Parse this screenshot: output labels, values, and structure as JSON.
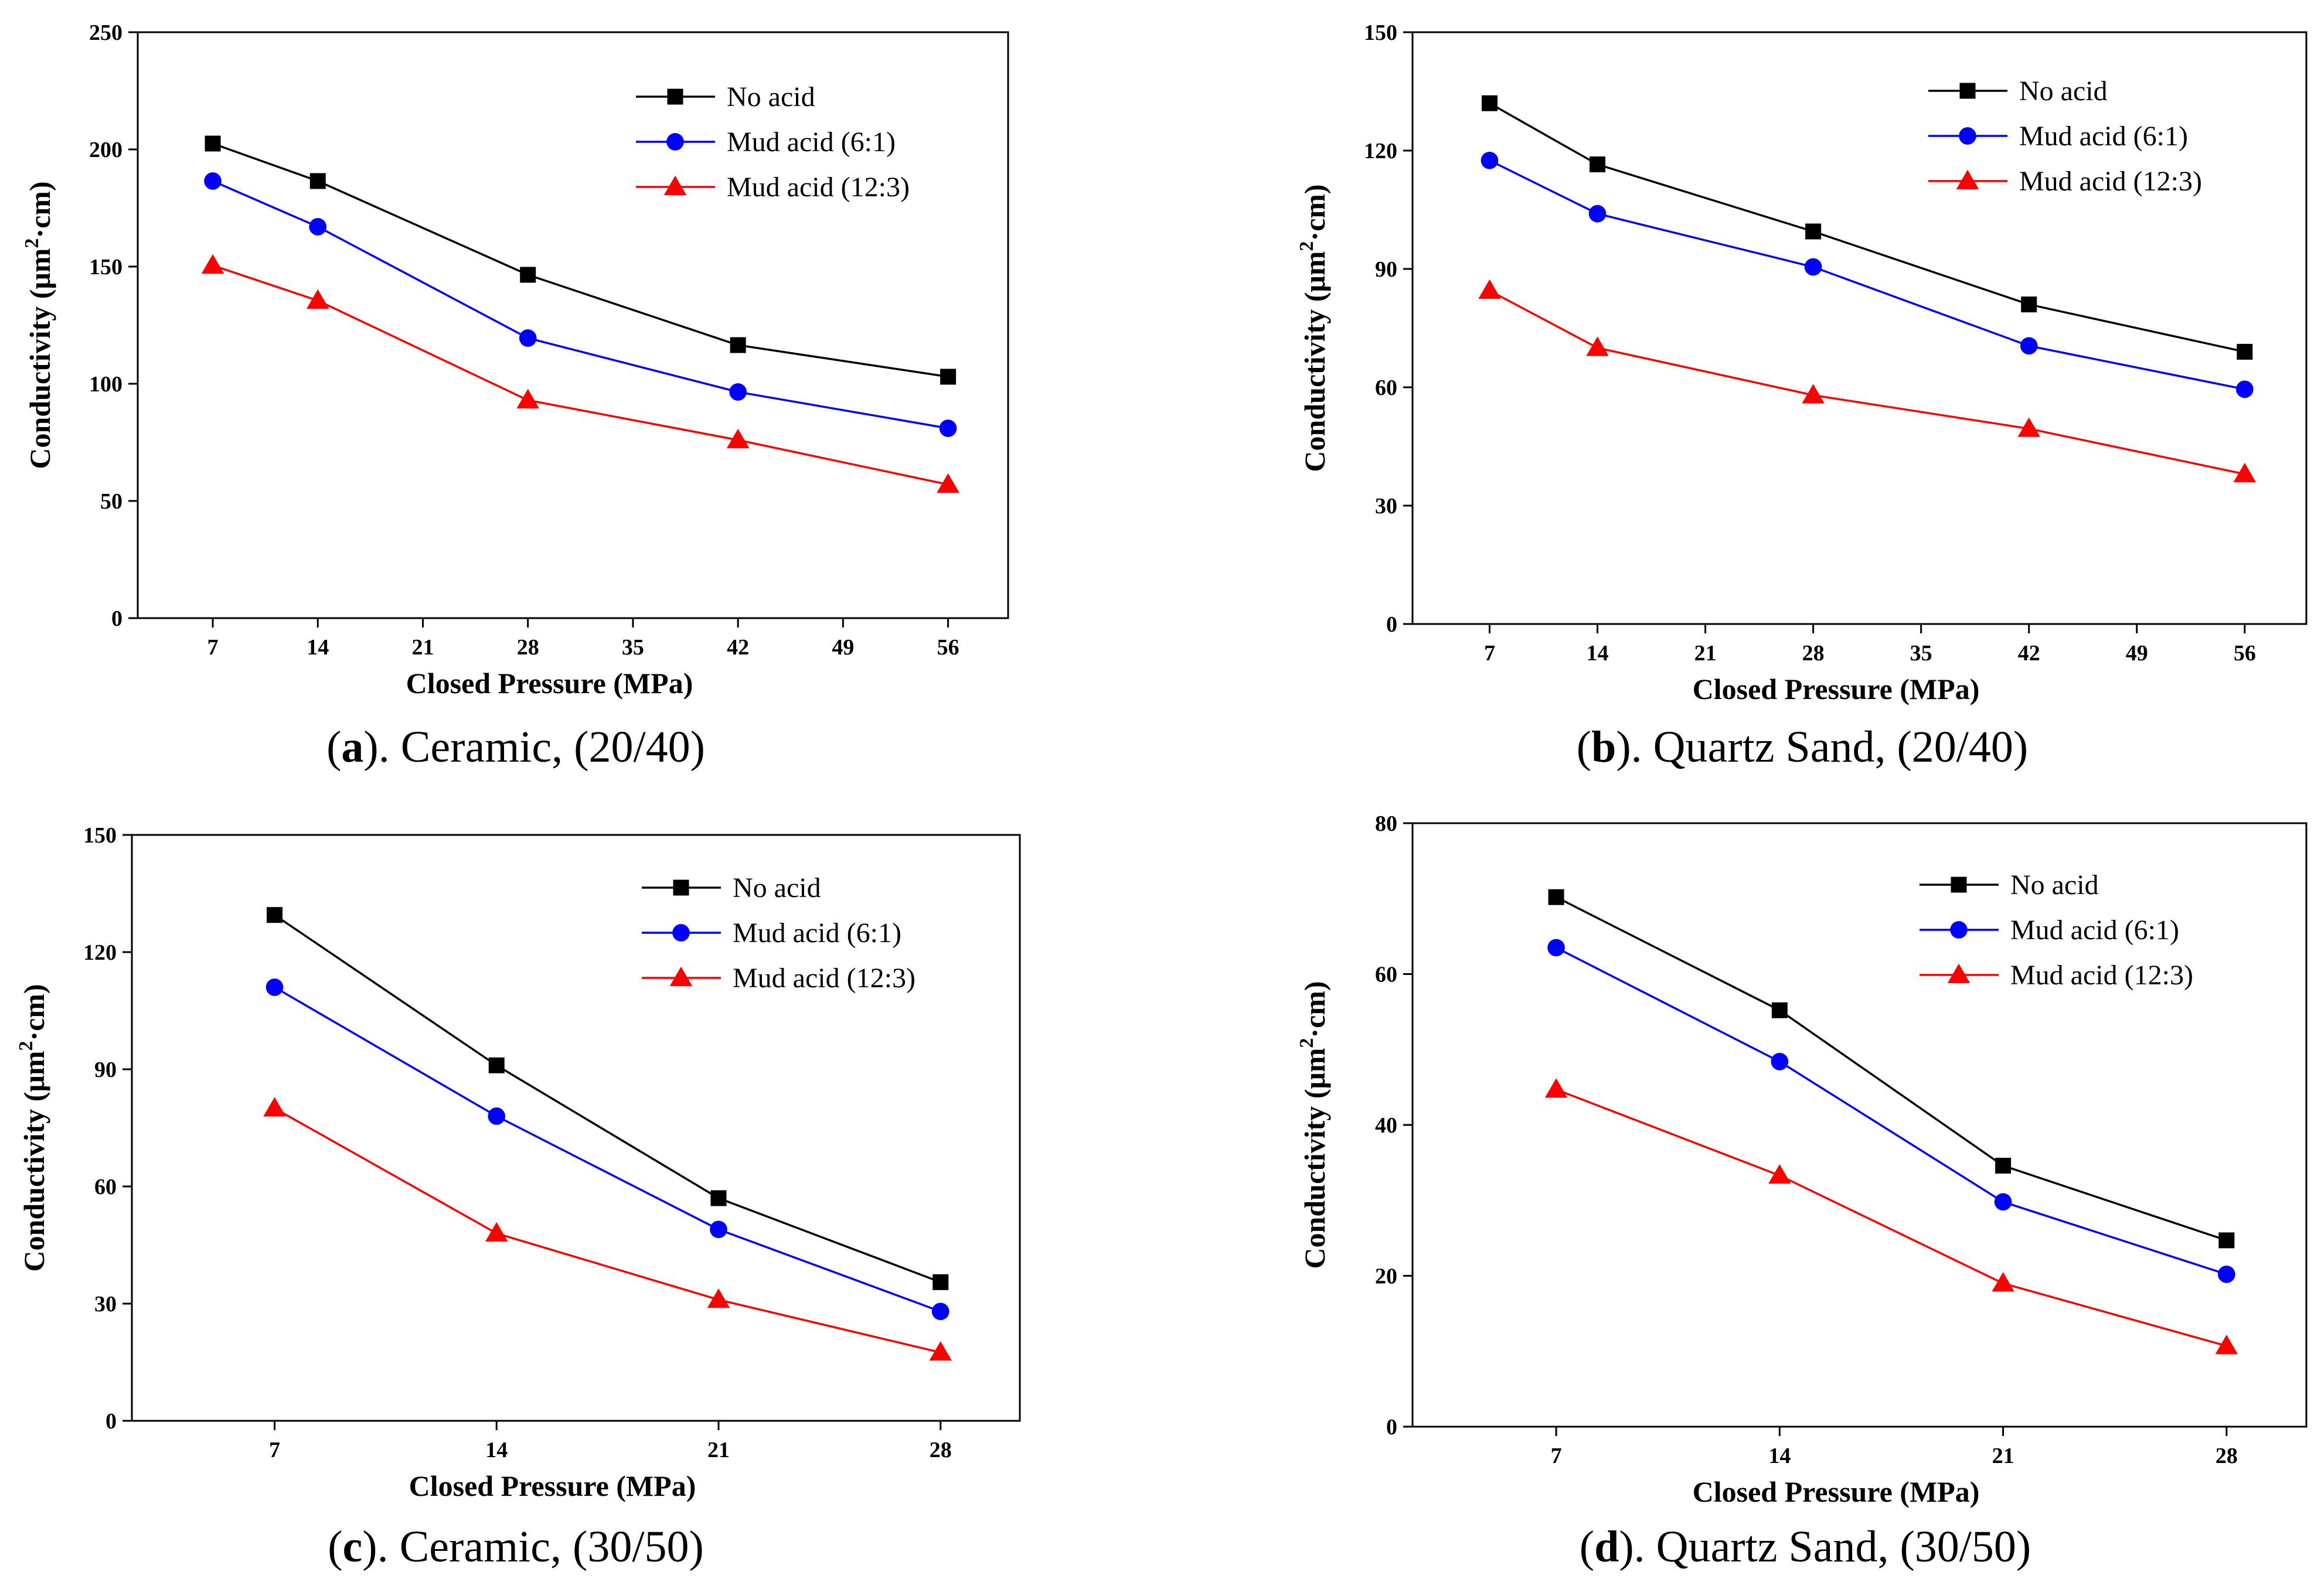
{
  "chart_data": [
    {
      "type": "line",
      "caption_letter": "a",
      "caption_rest": "). Ceramic, (20/40)",
      "xlabel": "Closed Pressure (MPa)",
      "ylabel_main": "Conductivity (μm",
      "ylabel_sup": "2",
      "ylabel_tail": "·cm)",
      "xlim": [
        2,
        60
      ],
      "ylim": [
        0,
        250
      ],
      "xticks": [
        7,
        14,
        21,
        28,
        35,
        42,
        49,
        56
      ],
      "yticks": [
        0,
        50,
        100,
        150,
        200,
        250
      ],
      "x": [
        7,
        14,
        28,
        42,
        56
      ],
      "legend_position": "top-right",
      "series": [
        {
          "name": "No acid",
          "color": "#000000",
          "marker": "square",
          "values": [
            202.5,
            186.5,
            146.5,
            116.5,
            103
          ]
        },
        {
          "name": "Mud acid (6:1)",
          "color": "#0000ff",
          "marker": "circle",
          "values": [
            186.5,
            167,
            119.5,
            96.5,
            81
          ]
        },
        {
          "name": "Mud acid (12:3)",
          "color": "#ff0000",
          "marker": "triangle",
          "values": [
            150.5,
            135.5,
            93,
            76,
            57
          ]
        }
      ]
    },
    {
      "type": "line",
      "caption_letter": "b",
      "caption_rest": "). Quartz Sand, (20/40)",
      "xlabel": "Closed Pressure (MPa)",
      "ylabel_main": "Conductivity (μm",
      "ylabel_sup": "2",
      "ylabel_tail": "·cm)",
      "xlim": [
        2,
        60
      ],
      "ylim": [
        0,
        150
      ],
      "xticks": [
        7,
        14,
        21,
        28,
        35,
        42,
        49,
        56
      ],
      "yticks": [
        0,
        30,
        60,
        90,
        120,
        150
      ],
      "x": [
        7,
        14,
        28,
        42,
        56
      ],
      "legend_position": "top-right",
      "series": [
        {
          "name": "No acid",
          "color": "#000000",
          "marker": "square",
          "values": [
            132,
            116.5,
            99.5,
            81,
            69
          ]
        },
        {
          "name": "Mud acid (6:1)",
          "color": "#0000ff",
          "marker": "circle",
          "values": [
            117.5,
            104,
            90.5,
            70.5,
            59.5
          ]
        },
        {
          "name": "Mud acid (12:3)",
          "color": "#ff0000",
          "marker": "triangle",
          "values": [
            84.5,
            70,
            58,
            49.5,
            38
          ]
        }
      ]
    },
    {
      "type": "line",
      "caption_letter": "c",
      "caption_rest": "). Ceramic, (30/50)",
      "xlabel": "Closed Pressure (MPa)",
      "ylabel_main": "Conductivity (μm",
      "ylabel_sup": "2",
      "ylabel_tail": "·cm)",
      "xlim": [
        2.5,
        30.5
      ],
      "ylim": [
        0,
        150
      ],
      "xticks": [
        7,
        14,
        21,
        28
      ],
      "yticks": [
        0,
        30,
        60,
        90,
        120,
        150
      ],
      "x": [
        7,
        14,
        21,
        28
      ],
      "legend_position": "top-right",
      "series": [
        {
          "name": "No acid",
          "color": "#000000",
          "marker": "square",
          "values": [
            129.5,
            91,
            57,
            35.5
          ]
        },
        {
          "name": "Mud acid (6:1)",
          "color": "#0000ff",
          "marker": "circle",
          "values": [
            111,
            78,
            49,
            28
          ]
        },
        {
          "name": "Mud acid (12:3)",
          "color": "#ff0000",
          "marker": "triangle",
          "values": [
            80,
            48,
            31,
            17.5
          ]
        }
      ]
    },
    {
      "type": "line",
      "caption_letter": "d",
      "caption_rest": "). Quartz Sand, (30/50)",
      "xlabel": "Closed Pressure (MPa)",
      "ylabel_main": "Conductivity (μm",
      "ylabel_sup": "2",
      "ylabel_tail": "·cm)",
      "xlim": [
        2.5,
        30.5
      ],
      "ylim": [
        0,
        80
      ],
      "xticks": [
        7,
        14,
        21,
        28
      ],
      "yticks": [
        0,
        20,
        40,
        60,
        80
      ],
      "x": [
        7,
        14,
        21,
        28
      ],
      "legend_position": "top-right",
      "series": [
        {
          "name": "No acid",
          "color": "#000000",
          "marker": "square",
          "values": [
            70.2,
            55.2,
            34.6,
            24.7
          ]
        },
        {
          "name": "Mud acid (6:1)",
          "color": "#0000ff",
          "marker": "circle",
          "values": [
            63.5,
            48.4,
            29.8,
            20.2
          ]
        },
        {
          "name": "Mud acid (12:3)",
          "color": "#ff0000",
          "marker": "triangle",
          "values": [
            44.7,
            33.3,
            19,
            10.7
          ]
        }
      ]
    }
  ]
}
